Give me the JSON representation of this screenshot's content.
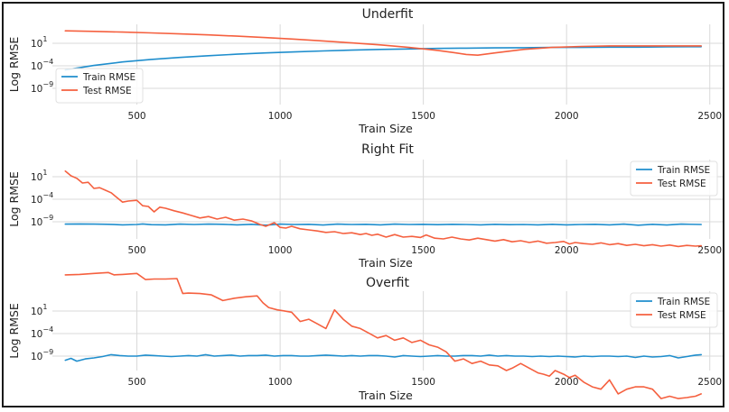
{
  "chart_data": [
    {
      "type": "line",
      "title": "Underfit",
      "xlabel": "Train Size",
      "ylabel": "Log RMSE",
      "xlim": [
        205,
        2545
      ],
      "ylim_log10": [
        -13,
        3
      ],
      "y_scale": "log",
      "x_ticks": [
        500,
        1000,
        1500,
        2000,
        2500
      ],
      "y_ticks": [
        {
          "exp": 1,
          "label": "10"
        },
        {
          "exp": -4,
          "label": "10"
        },
        {
          "exp": -9,
          "label": "10"
        }
      ],
      "legend_position": "lower-left",
      "series": [
        {
          "name": "Train RMSE",
          "color": "#1f8ecd",
          "x": [
            250,
            350,
            450,
            550,
            650,
            750,
            850,
            950,
            1050,
            1150,
            1250,
            1350,
            1450,
            1550,
            1650,
            1750,
            1850,
            1950,
            2050,
            2150,
            2250,
            2350,
            2470
          ],
          "log10_y": [
            -6.1,
            -5.2,
            -4.5,
            -4.0,
            -3.6,
            -3.25,
            -2.95,
            -2.7,
            -2.5,
            -2.3,
            -2.15,
            -2.0,
            -1.9,
            -1.8,
            -1.75,
            -1.7,
            -1.65,
            -1.6,
            -1.6,
            -1.55,
            -1.55,
            -1.5,
            -1.45
          ]
        },
        {
          "name": "Test RMSE",
          "color": "#f5603f",
          "x": [
            250,
            350,
            450,
            550,
            650,
            750,
            850,
            950,
            1050,
            1150,
            1250,
            1350,
            1450,
            1550,
            1600,
            1650,
            1690,
            1750,
            1850,
            1950,
            2050,
            2150,
            2250,
            2350,
            2470
          ],
          "log10_y": [
            1.7,
            1.6,
            1.45,
            1.3,
            1.1,
            0.9,
            0.65,
            0.35,
            0.05,
            -0.3,
            -0.7,
            -1.1,
            -1.6,
            -2.2,
            -2.6,
            -3.0,
            -3.15,
            -2.7,
            -2.0,
            -1.6,
            -1.4,
            -1.3,
            -1.3,
            -1.3,
            -1.3
          ]
        }
      ]
    },
    {
      "type": "line",
      "title": "Right Fit",
      "xlabel": "Train Size",
      "ylabel": "Log RMSE",
      "xlim": [
        205,
        2545
      ],
      "ylim_log10": [
        -16,
        6
      ],
      "y_scale": "log",
      "x_ticks": [
        500,
        1000,
        1500,
        2000,
        2500
      ],
      "y_ticks": [
        {
          "exp": 1,
          "label": "10"
        },
        {
          "exp": -4,
          "label": "10"
        },
        {
          "exp": -9,
          "label": "10"
        }
      ],
      "legend_position": "upper-right",
      "series": [
        {
          "name": "Train RMSE",
          "color": "#1f8ecd",
          "x": [
            250,
            300,
            350,
            400,
            450,
            500,
            520,
            550,
            600,
            650,
            700,
            750,
            800,
            850,
            900,
            950,
            1000,
            1050,
            1100,
            1150,
            1200,
            1250,
            1300,
            1350,
            1400,
            1450,
            1500,
            1550,
            1600,
            1650,
            1700,
            1750,
            1800,
            1850,
            1900,
            1950,
            2000,
            2050,
            2100,
            2150,
            2200,
            2250,
            2300,
            2350,
            2400,
            2470
          ],
          "log10_y": [
            -11.9,
            -11.85,
            -11.9,
            -11.95,
            -12.1,
            -12.0,
            -11.85,
            -12.05,
            -12.1,
            -11.9,
            -12.0,
            -11.9,
            -11.95,
            -12.1,
            -11.95,
            -12.2,
            -11.9,
            -12.0,
            -11.95,
            -12.15,
            -11.9,
            -12.0,
            -11.95,
            -12.1,
            -11.9,
            -12.0,
            -11.95,
            -12.05,
            -11.95,
            -12.0,
            -12.1,
            -11.95,
            -12.05,
            -12.0,
            -12.1,
            -11.95,
            -12.1,
            -12.0,
            -11.95,
            -12.1,
            -11.9,
            -12.2,
            -11.95,
            -12.15,
            -11.9,
            -12.0
          ]
        },
        {
          "name": "Test RMSE",
          "color": "#f5603f",
          "x": [
            250,
            270,
            290,
            310,
            330,
            350,
            370,
            390,
            410,
            430,
            450,
            470,
            500,
            520,
            540,
            560,
            580,
            600,
            630,
            660,
            690,
            720,
            750,
            780,
            810,
            840,
            870,
            900,
            930,
            950,
            980,
            1000,
            1020,
            1040,
            1070,
            1100,
            1130,
            1160,
            1190,
            1220,
            1250,
            1280,
            1300,
            1320,
            1340,
            1370,
            1400,
            1430,
            1460,
            1490,
            1510,
            1540,
            1570,
            1600,
            1630,
            1660,
            1690,
            1720,
            1750,
            1780,
            1810,
            1840,
            1870,
            1900,
            1930,
            1960,
            1990,
            2010,
            2030,
            2060,
            2090,
            2120,
            2150,
            2180,
            2210,
            2240,
            2270,
            2300,
            2330,
            2360,
            2390,
            2420,
            2450,
            2470
          ],
          "log10_y": [
            2.8,
            1.5,
            0.8,
            -0.5,
            -0.3,
            -2.0,
            -1.8,
            -2.5,
            -3.2,
            -4.5,
            -5.8,
            -5.5,
            -5.3,
            -6.8,
            -7.0,
            -8.5,
            -7.2,
            -7.5,
            -8.2,
            -8.8,
            -9.5,
            -10.2,
            -9.8,
            -10.5,
            -10.0,
            -10.8,
            -10.5,
            -11.0,
            -12.0,
            -12.5,
            -11.5,
            -12.8,
            -13.0,
            -12.5,
            -13.2,
            -13.5,
            -13.8,
            -14.2,
            -14.0,
            -14.5,
            -14.3,
            -14.8,
            -14.5,
            -15.0,
            -14.7,
            -15.5,
            -14.8,
            -15.5,
            -15.3,
            -15.6,
            -14.9,
            -15.8,
            -16.0,
            -15.5,
            -16.0,
            -16.3,
            -15.8,
            -16.2,
            -16.6,
            -16.2,
            -16.8,
            -16.5,
            -17.0,
            -16.6,
            -17.2,
            -17.0,
            -16.7,
            -17.4,
            -17.0,
            -17.3,
            -17.5,
            -17.1,
            -17.6,
            -17.3,
            -17.8,
            -17.5,
            -17.9,
            -17.6,
            -18.0,
            -17.7,
            -18.1,
            -17.8,
            -18.0,
            -17.9
          ]
        }
      ]
    },
    {
      "type": "line",
      "title": "Overfit",
      "xlabel": "Train Size",
      "ylabel": "Log RMSE",
      "xlim": [
        205,
        2545
      ],
      "ylim_log10": [
        -13,
        4
      ],
      "y_scale": "log",
      "x_ticks": [
        500,
        1000,
        1500,
        2000,
        2500
      ],
      "y_ticks": [
        {
          "exp": 1,
          "label": "10"
        },
        {
          "exp": -4,
          "label": "10"
        },
        {
          "exp": -9,
          "label": "10"
        }
      ],
      "legend_position": "upper-right",
      "series": [
        {
          "name": "Train RMSE",
          "color": "#1f8ecd",
          "x": [
            250,
            270,
            290,
            320,
            350,
            380,
            410,
            440,
            470,
            500,
            530,
            560,
            590,
            620,
            650,
            680,
            710,
            740,
            770,
            800,
            830,
            860,
            890,
            920,
            950,
            980,
            1010,
            1040,
            1070,
            1100,
            1130,
            1160,
            1190,
            1220,
            1250,
            1280,
            1310,
            1340,
            1370,
            1400,
            1430,
            1460,
            1490,
            1520,
            1550,
            1580,
            1610,
            1640,
            1670,
            1700,
            1730,
            1760,
            1790,
            1820,
            1850,
            1880,
            1910,
            1940,
            1970,
            2000,
            2030,
            2060,
            2090,
            2120,
            2150,
            2180,
            2210,
            2240,
            2270,
            2300,
            2330,
            2360,
            2390,
            2420,
            2450,
            2470
          ],
          "log10_y": [
            -10.8,
            -10.4,
            -11.0,
            -10.5,
            -10.3,
            -10.0,
            -9.6,
            -9.8,
            -9.9,
            -9.9,
            -9.7,
            -9.8,
            -9.9,
            -10.0,
            -9.9,
            -9.8,
            -9.9,
            -9.6,
            -9.9,
            -9.8,
            -9.7,
            -9.9,
            -9.8,
            -9.8,
            -9.7,
            -9.9,
            -9.8,
            -9.8,
            -9.9,
            -9.9,
            -9.8,
            -9.7,
            -9.8,
            -9.9,
            -9.8,
            -9.9,
            -9.8,
            -9.8,
            -9.9,
            -10.1,
            -9.8,
            -9.9,
            -10.0,
            -9.9,
            -9.8,
            -9.9,
            -9.9,
            -9.8,
            -9.8,
            -9.9,
            -9.7,
            -9.9,
            -9.8,
            -9.9,
            -9.9,
            -10.0,
            -9.9,
            -10.0,
            -9.9,
            -10.0,
            -10.1,
            -9.9,
            -10.0,
            -9.9,
            -9.9,
            -10.0,
            -9.9,
            -10.2,
            -9.9,
            -10.1,
            -10.0,
            -9.8,
            -10.3,
            -10.0,
            -9.7,
            -9.6
          ]
        },
        {
          "name": "Test RMSE",
          "color": "#f5603f",
          "x": [
            250,
            300,
            350,
            400,
            420,
            450,
            500,
            530,
            560,
            600,
            640,
            660,
            680,
            720,
            760,
            800,
            840,
            880,
            920,
            940,
            960,
            990,
            1010,
            1040,
            1070,
            1100,
            1130,
            1160,
            1190,
            1220,
            1250,
            1280,
            1310,
            1340,
            1370,
            1400,
            1430,
            1460,
            1490,
            1520,
            1550,
            1580,
            1610,
            1640,
            1670,
            1700,
            1730,
            1760,
            1790,
            1810,
            1840,
            1870,
            1900,
            1920,
            1940,
            1960,
            1990,
            2010,
            2030,
            2060,
            2090,
            2120,
            2150,
            2180,
            2210,
            2240,
            2270,
            2300,
            2330,
            2360,
            2390,
            2420,
            2450,
            2470
          ],
          "log10_y": [
            7.5,
            7.6,
            7.8,
            8.0,
            7.5,
            7.6,
            7.8,
            6.5,
            6.6,
            6.6,
            6.7,
            3.5,
            3.6,
            3.5,
            3.2,
            2.0,
            2.5,
            2.8,
            3.0,
            1.5,
            0.5,
            0.0,
            -0.2,
            -0.5,
            -2.5,
            -2.0,
            -3.0,
            -4.0,
            0.0,
            -2.0,
            -3.5,
            -4.0,
            -5.0,
            -6.0,
            -5.5,
            -6.5,
            -6.0,
            -7.0,
            -6.5,
            -7.5,
            -8.0,
            -9.0,
            -11.0,
            -10.5,
            -11.5,
            -11.0,
            -11.8,
            -12.0,
            -13.0,
            -12.5,
            -11.5,
            -12.5,
            -13.5,
            -13.8,
            -14.2,
            -13.0,
            -13.8,
            -14.5,
            -14.0,
            -15.5,
            -16.5,
            -17.0,
            -15.0,
            -18.0,
            -17.0,
            -16.5,
            -16.5,
            -17.0,
            -19.0,
            -18.5,
            -19.0,
            -18.8,
            -18.5,
            -18.0
          ]
        }
      ]
    }
  ]
}
